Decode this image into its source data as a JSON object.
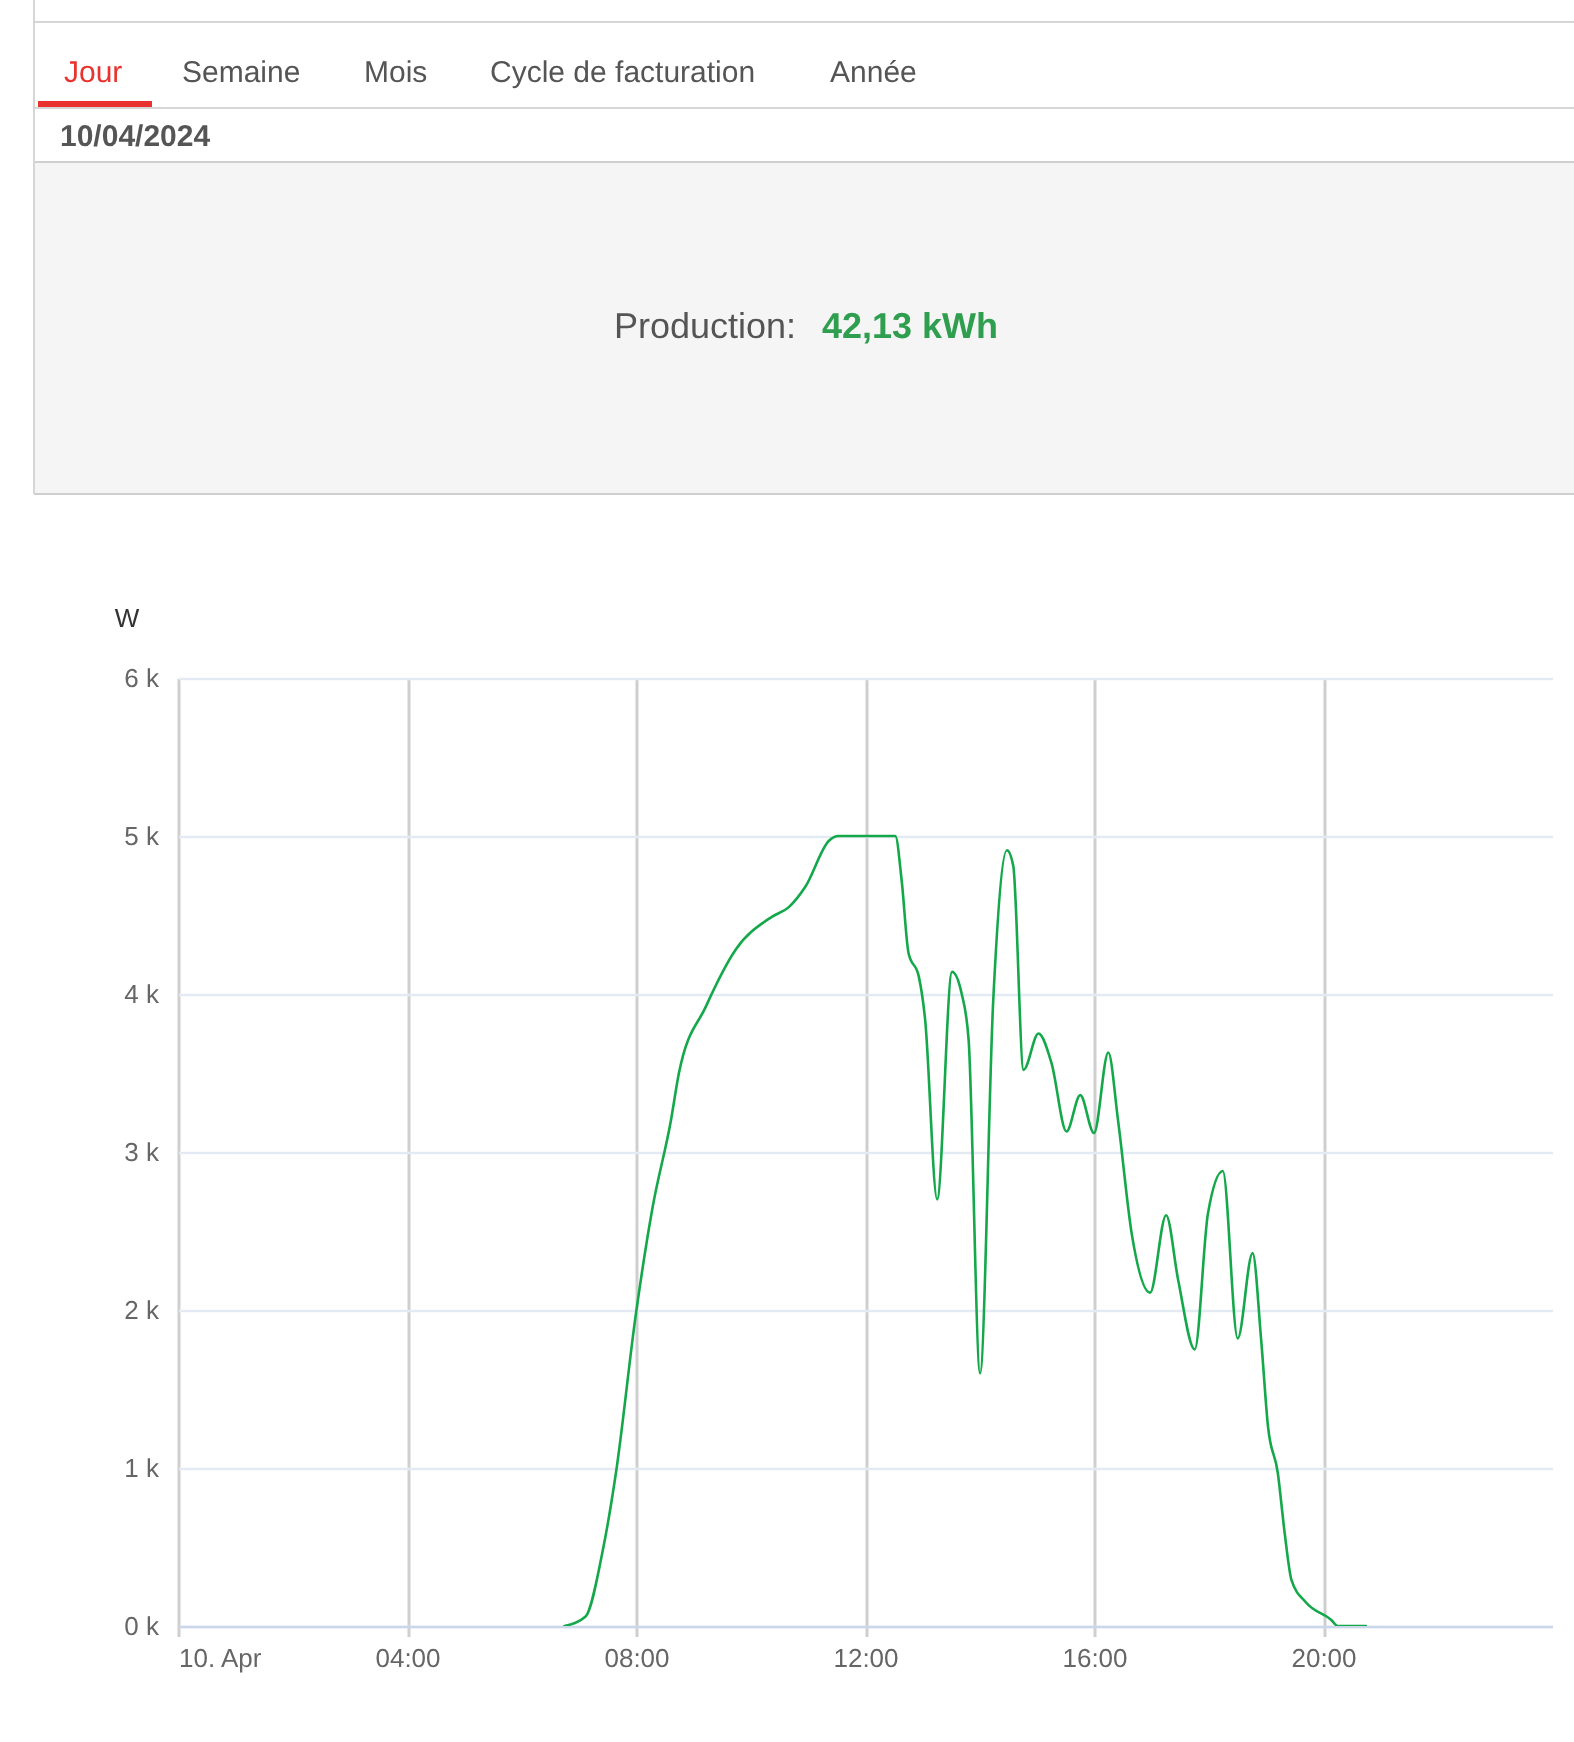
{
  "chart_data": {
    "type": "line",
    "title": "10/04/2024",
    "ylabel": "W",
    "annotations": [
      "Jour",
      "Semaine",
      "Mois",
      "Cycle de facturation",
      "Année",
      "Production:",
      "42,13 kWh"
    ],
    "x": [
      6.75,
      7.12,
      7.41,
      7.65,
      8.0,
      8.29,
      8.61,
      8.75,
      9.22,
      9.74,
      10.38,
      10.67,
      10.96,
      11.37,
      11.54,
      12.53,
      12.64,
      12.76,
      12.94,
      13.05,
      13.26,
      13.52,
      13.69,
      13.81,
      14.01,
      14.24,
      14.48,
      14.59,
      14.77,
      15.03,
      15.26,
      15.52,
      15.76,
      16.0,
      16.25,
      16.42,
      16.66,
      16.98,
      17.26,
      17.47,
      17.76,
      17.99,
      18.25,
      18.51,
      18.77,
      18.92,
      19.04,
      19.21,
      19.33,
      19.45,
      19.7,
      20.14,
      20.26,
      20.75
    ],
    "series": [
      {
        "color": "#14a84b",
        "values": [
          0,
          60,
          460,
          970,
          1980,
          2650,
          3200,
          3500,
          3920,
          4280,
          4490,
          4550,
          4680,
          4970,
          5000,
          5000,
          4720,
          4260,
          4110,
          3840,
          2700,
          4140,
          4000,
          3710,
          1600,
          3960,
          4910,
          4810,
          3520,
          3750,
          3560,
          3130,
          3360,
          3120,
          3630,
          3200,
          2480,
          2110,
          2600,
          2190,
          1750,
          2610,
          2880,
          1820,
          2360,
          1810,
          1260,
          970,
          590,
          290,
          150,
          40,
          0,
          0
        ]
      }
    ],
    "xlim": [
      0,
      24
    ],
    "xticks": [
      {
        "value": 0,
        "label": "10. Apr"
      },
      {
        "value": 4,
        "label": "04:00"
      },
      {
        "value": 8,
        "label": "08:00"
      },
      {
        "value": 12,
        "label": "12:00"
      },
      {
        "value": 16,
        "label": "16:00"
      },
      {
        "value": 20,
        "label": "20:00"
      }
    ],
    "ylim": [
      0,
      6000
    ],
    "yticks": [
      {
        "value": 0,
        "label": "0 k"
      },
      {
        "value": 1000,
        "label": "1 k"
      },
      {
        "value": 2000,
        "label": "2 k"
      },
      {
        "value": 3000,
        "label": "3 k"
      },
      {
        "value": 4000,
        "label": "4 k"
      },
      {
        "value": 5000,
        "label": "5 k"
      },
      {
        "value": 6000,
        "label": "6 k"
      }
    ],
    "grid": true,
    "line_style": "solid"
  }
}
